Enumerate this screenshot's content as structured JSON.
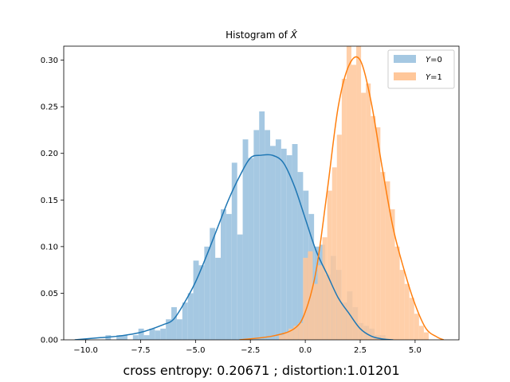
{
  "chart_data": {
    "type": "bar",
    "title": "Histogram of X̂",
    "title_base": "Histogram of ",
    "title_symbol": "X̂",
    "xlabel": "cross entropy: 0.20671 ; distortion:1.01201",
    "ylabel": "",
    "xlim": [
      -11,
      7
    ],
    "ylim": [
      0,
      0.315
    ],
    "xticks": [
      -10.0,
      -7.5,
      -5.0,
      -2.5,
      0.0,
      2.5,
      5.0
    ],
    "xtick_labels": [
      "−10.0",
      "−7.5",
      "−5.0",
      "−2.5",
      "0.0",
      "2.5",
      "5.0"
    ],
    "yticks": [
      0.0,
      0.05,
      0.1,
      0.15,
      0.2,
      0.25,
      0.3
    ],
    "ytick_labels": [
      "0.00",
      "0.05",
      "0.10",
      "0.15",
      "0.20",
      "0.25",
      "0.30"
    ],
    "legend_position": "top-right",
    "grid": false,
    "series": [
      {
        "name": "Y=0",
        "legend_var": "Y",
        "legend_val": "=0",
        "bar_color": "#a5c8e2",
        "line_color": "#1f77b4",
        "bins": [
          [
            -9.1,
            -8.85,
            0.005
          ],
          [
            -8.6,
            -8.35,
            0.005
          ],
          [
            -8.35,
            -8.1,
            0.005
          ],
          [
            -7.85,
            -7.6,
            0.005
          ],
          [
            -7.6,
            -7.35,
            0.012
          ],
          [
            -7.35,
            -7.1,
            0.005
          ],
          [
            -7.1,
            -6.85,
            0.012
          ],
          [
            -6.85,
            -6.6,
            0.01
          ],
          [
            -6.6,
            -6.35,
            0.012
          ],
          [
            -6.35,
            -6.1,
            0.022
          ],
          [
            -6.1,
            -5.85,
            0.035
          ],
          [
            -5.85,
            -5.6,
            0.022
          ],
          [
            -5.6,
            -5.35,
            0.04
          ],
          [
            -5.35,
            -5.1,
            0.05
          ],
          [
            -5.1,
            -4.85,
            0.085
          ],
          [
            -4.85,
            -4.6,
            0.08
          ],
          [
            -4.6,
            -4.35,
            0.1
          ],
          [
            -4.35,
            -4.1,
            0.12
          ],
          [
            -4.1,
            -3.85,
            0.088
          ],
          [
            -3.85,
            -3.6,
            0.14
          ],
          [
            -3.6,
            -3.35,
            0.135
          ],
          [
            -3.35,
            -3.1,
            0.19
          ],
          [
            -3.1,
            -2.85,
            0.113
          ],
          [
            -2.85,
            -2.6,
            0.215
          ],
          [
            -2.6,
            -2.35,
            0.195
          ],
          [
            -2.35,
            -2.1,
            0.225
          ],
          [
            -2.1,
            -1.85,
            0.245
          ],
          [
            -1.85,
            -1.6,
            0.225
          ],
          [
            -1.6,
            -1.35,
            0.208
          ],
          [
            -1.35,
            -1.1,
            0.215
          ],
          [
            -1.1,
            -0.85,
            0.205
          ],
          [
            -0.85,
            -0.6,
            0.198
          ],
          [
            -0.6,
            -0.35,
            0.21
          ],
          [
            -0.35,
            -0.1,
            0.18
          ],
          [
            -0.1,
            0.15,
            0.16
          ],
          [
            0.15,
            0.4,
            0.135
          ],
          [
            0.4,
            0.65,
            0.1
          ],
          [
            0.65,
            0.9,
            0.102
          ],
          [
            0.9,
            1.15,
            0.07
          ],
          [
            1.15,
            1.4,
            0.09
          ],
          [
            1.4,
            1.65,
            0.075
          ],
          [
            1.65,
            1.9,
            0.04
          ],
          [
            1.9,
            2.15,
            0.052
          ],
          [
            2.15,
            2.4,
            0.035
          ],
          [
            2.4,
            2.65,
            0.018
          ],
          [
            2.65,
            2.9,
            0.015
          ],
          [
            2.9,
            3.15,
            0.012
          ],
          [
            3.15,
            3.4,
            0.005
          ],
          [
            3.4,
            3.65,
            0.005
          ]
        ],
        "kde": [
          [
            -10.5,
            0.0
          ],
          [
            -9.5,
            0.002
          ],
          [
            -8.5,
            0.004
          ],
          [
            -7.5,
            0.008
          ],
          [
            -6.5,
            0.016
          ],
          [
            -6.0,
            0.022
          ],
          [
            -5.5,
            0.04
          ],
          [
            -5.0,
            0.062
          ],
          [
            -4.5,
            0.09
          ],
          [
            -4.0,
            0.12
          ],
          [
            -3.5,
            0.15
          ],
          [
            -3.0,
            0.175
          ],
          [
            -2.5,
            0.195
          ],
          [
            -2.0,
            0.198
          ],
          [
            -1.5,
            0.198
          ],
          [
            -1.0,
            0.19
          ],
          [
            -0.5,
            0.165
          ],
          [
            0.0,
            0.13
          ],
          [
            0.5,
            0.095
          ],
          [
            1.0,
            0.07
          ],
          [
            1.5,
            0.045
          ],
          [
            2.0,
            0.028
          ],
          [
            2.5,
            0.012
          ],
          [
            3.0,
            0.004
          ],
          [
            3.5,
            0.001
          ],
          [
            4.0,
            0.0
          ]
        ]
      },
      {
        "name": "Y=1",
        "legend_var": "Y",
        "legend_val": "=1",
        "bar_color": "#ffc79a",
        "line_color": "#ff7f0e",
        "bins": [
          [
            -1.2,
            -0.98,
            0.005
          ],
          [
            -0.98,
            -0.76,
            0.008
          ],
          [
            -0.76,
            -0.54,
            0.012
          ],
          [
            -0.54,
            -0.32,
            0.015
          ],
          [
            -0.32,
            -0.1,
            0.018
          ],
          [
            -0.1,
            0.12,
            0.088
          ],
          [
            0.12,
            0.34,
            0.095
          ],
          [
            0.34,
            0.56,
            0.06
          ],
          [
            0.56,
            0.78,
            0.08
          ],
          [
            0.78,
            1.0,
            0.11
          ],
          [
            1.0,
            1.22,
            0.16
          ],
          [
            1.22,
            1.44,
            0.185
          ],
          [
            1.44,
            1.66,
            0.22
          ],
          [
            1.66,
            1.88,
            0.28
          ],
          [
            1.88,
            2.1,
            0.315
          ],
          [
            2.1,
            2.32,
            0.295
          ],
          [
            2.32,
            2.54,
            0.315
          ],
          [
            2.54,
            2.76,
            0.265
          ],
          [
            2.76,
            2.98,
            0.275
          ],
          [
            2.98,
            3.2,
            0.24
          ],
          [
            3.2,
            3.42,
            0.228
          ],
          [
            3.42,
            3.64,
            0.18
          ],
          [
            3.64,
            3.86,
            0.17
          ],
          [
            3.86,
            4.08,
            0.14
          ],
          [
            4.08,
            4.3,
            0.1
          ],
          [
            4.3,
            4.52,
            0.075
          ],
          [
            4.52,
            4.74,
            0.06
          ],
          [
            4.74,
            4.96,
            0.045
          ],
          [
            4.96,
            5.18,
            0.028
          ],
          [
            5.18,
            5.4,
            0.015
          ],
          [
            5.4,
            5.62,
            0.008
          ]
        ],
        "kde": [
          [
            -3.0,
            0.0
          ],
          [
            -1.5,
            0.004
          ],
          [
            -0.5,
            0.012
          ],
          [
            0.0,
            0.03
          ],
          [
            0.5,
            0.075
          ],
          [
            1.0,
            0.16
          ],
          [
            1.5,
            0.25
          ],
          [
            2.0,
            0.295
          ],
          [
            2.5,
            0.3
          ],
          [
            3.0,
            0.255
          ],
          [
            3.5,
            0.185
          ],
          [
            4.0,
            0.12
          ],
          [
            4.5,
            0.075
          ],
          [
            5.0,
            0.038
          ],
          [
            5.5,
            0.012
          ],
          [
            6.0,
            0.003
          ],
          [
            6.3,
            0.0
          ]
        ]
      }
    ]
  }
}
